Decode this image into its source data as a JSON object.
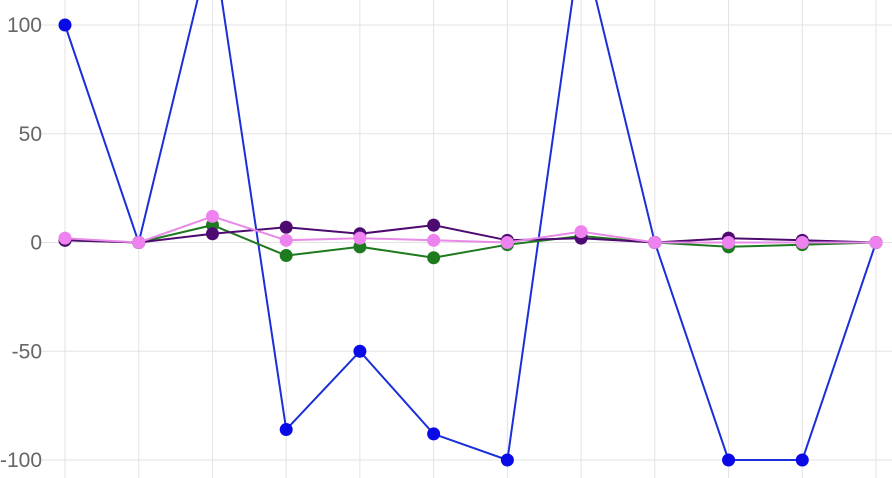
{
  "chart_data": {
    "type": "line",
    "title": "",
    "xlabel": "",
    "ylabel": "",
    "ylim": [
      -100,
      100
    ],
    "yticks": [
      100,
      50,
      0,
      -50,
      -100
    ],
    "grid": true,
    "legend": "none",
    "x": [
      1,
      2,
      3,
      4,
      5,
      6,
      7,
      8,
      9,
      10,
      11,
      12
    ],
    "series": [
      {
        "color": "#1a2fd9",
        "point_color": "#0a0ae6",
        "values": [
          100,
          0,
          140,
          -86,
          -50,
          -88,
          -100,
          140,
          0,
          -100,
          -100,
          0
        ]
      },
      {
        "color": "#1e7a1e",
        "point_color": "#1e7a1e",
        "values": [
          1,
          0,
          8,
          -6,
          -2,
          -7,
          -1,
          3,
          0,
          -2,
          -1,
          0
        ]
      },
      {
        "color": "#4d0a70",
        "point_color": "#4d0a70",
        "values": [
          1,
          0,
          4,
          7,
          4,
          8,
          1,
          2,
          0,
          2,
          1,
          0
        ]
      },
      {
        "color": "#e88ae8",
        "point_color": "#ee82ee",
        "values": [
          2,
          0,
          12,
          1,
          2,
          1,
          0,
          5,
          0,
          0,
          0,
          0
        ]
      }
    ]
  }
}
